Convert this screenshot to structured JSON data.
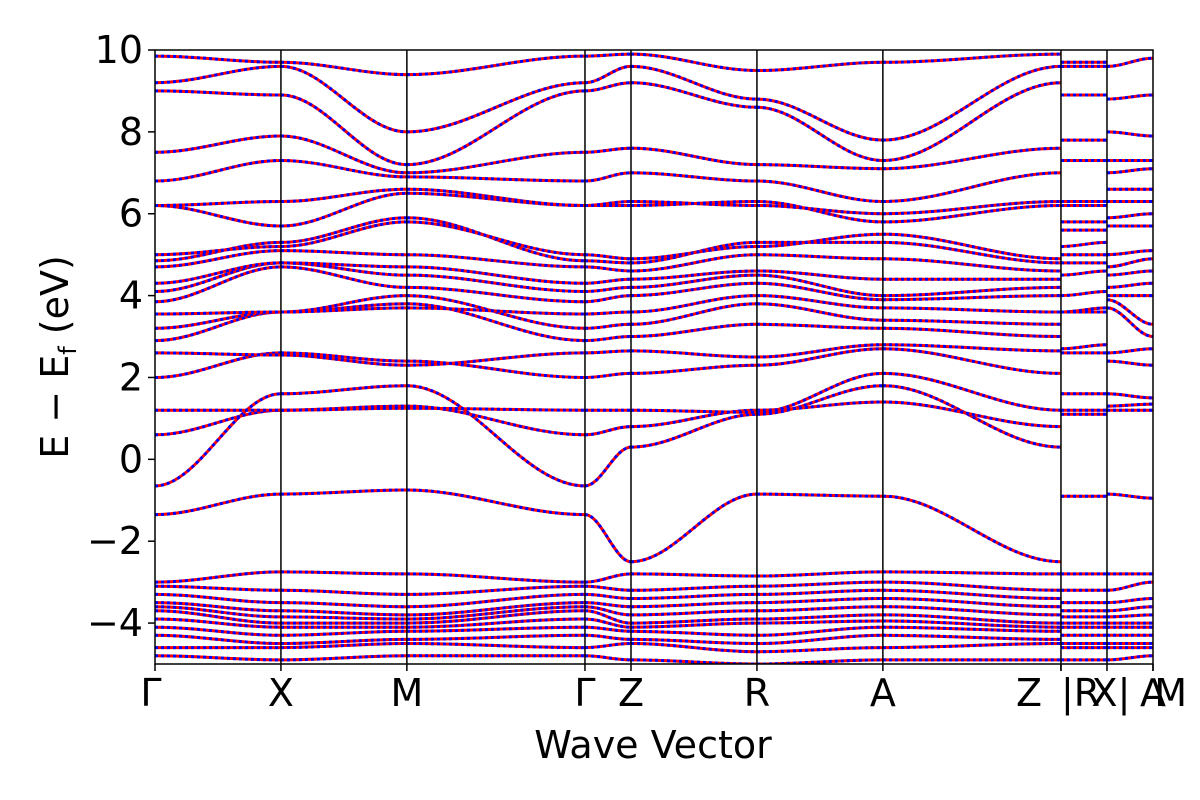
{
  "chart_data": {
    "type": "line",
    "title": "",
    "xlabel": "Wave Vector",
    "ylabel_main": "E − E",
    "ylabel_sub": "f",
    "ylabel_unit": " (eV)",
    "ylim": [
      -5,
      10
    ],
    "yticks": [
      -4,
      -2,
      0,
      2,
      4,
      6,
      8,
      10
    ],
    "ytick_labels": [
      "−4",
      "−2",
      "0",
      "2",
      "4",
      "6",
      "8",
      "10"
    ],
    "kpoints": [
      {
        "label": "Γ",
        "x": 0.0
      },
      {
        "label": "X",
        "x": 0.5
      },
      {
        "label": "M",
        "x": 1.0
      },
      {
        "label": "Γ",
        "x": 1.7071
      },
      {
        "label": "Z",
        "x": 1.8898
      },
      {
        "label": "R",
        "x": 2.3898
      },
      {
        "label": "A",
        "x": 2.8898
      },
      {
        "label": "Z",
        "x": 3.5969
      },
      {
        "label": "R",
        "x": 3.5969
      },
      {
        "label": "X",
        "x": 3.7796
      },
      {
        "label": "M",
        "x": 3.9623
      },
      {
        "label": "A",
        "x": 3.9623
      }
    ],
    "kpoint_label_text": [
      "Γ",
      "X",
      "M",
      "Γ",
      "Z",
      "R",
      "A",
      "Z",
      "|R",
      "X|",
      "M",
      "A"
    ],
    "xlim": [
      0.0,
      3.9623
    ],
    "series_styles": [
      {
        "color": "#ff0000",
        "dash": "solid"
      },
      {
        "color": "#0000ff",
        "dash": "dotted"
      }
    ],
    "segments": [
      {
        "x0": 0.0,
        "x1": 0.5,
        "bands": [
          [
            -1.35,
            -0.85
          ],
          [
            -0.65,
            1.6
          ],
          [
            0.6,
            1.2
          ],
          [
            1.2,
            1.2
          ],
          [
            2.0,
            2.6
          ],
          [
            2.6,
            2.55
          ],
          [
            2.9,
            3.6
          ],
          [
            3.2,
            3.6
          ],
          [
            3.55,
            3.6
          ],
          [
            3.85,
            4.7
          ],
          [
            4.1,
            4.8
          ],
          [
            4.3,
            4.8
          ],
          [
            4.7,
            5.1
          ],
          [
            4.85,
            5.3
          ],
          [
            5.0,
            5.2
          ],
          [
            6.2,
            5.7
          ],
          [
            6.2,
            6.3
          ],
          [
            6.8,
            7.3
          ],
          [
            7.5,
            7.9
          ],
          [
            9.0,
            8.9
          ],
          [
            9.2,
            9.6
          ],
          [
            9.85,
            9.7
          ],
          [
            -3.0,
            -2.75
          ],
          [
            -3.1,
            -3.2
          ],
          [
            -3.3,
            -3.5
          ],
          [
            -3.5,
            -3.7
          ],
          [
            -3.6,
            -3.85
          ],
          [
            -3.7,
            -4.0
          ],
          [
            -3.9,
            -4.1
          ],
          [
            -4.1,
            -4.3
          ],
          [
            -4.3,
            -4.5
          ],
          [
            -4.6,
            -4.6
          ],
          [
            -4.8,
            -4.9
          ]
        ]
      },
      {
        "x0": 0.5,
        "x1": 1.0,
        "bands": [
          [
            -0.85,
            -0.75
          ],
          [
            1.6,
            1.8
          ],
          [
            1.2,
            1.3
          ],
          [
            1.2,
            1.25
          ],
          [
            2.6,
            2.4
          ],
          [
            2.55,
            2.3
          ],
          [
            3.6,
            3.8
          ],
          [
            3.6,
            4.0
          ],
          [
            3.6,
            3.7
          ],
          [
            4.7,
            4.2
          ],
          [
            4.8,
            4.5
          ],
          [
            4.8,
            4.7
          ],
          [
            5.1,
            5.0
          ],
          [
            5.3,
            5.9
          ],
          [
            5.2,
            5.8
          ],
          [
            5.7,
            6.5
          ],
          [
            6.3,
            6.6
          ],
          [
            7.3,
            6.9
          ],
          [
            7.9,
            7.0
          ],
          [
            8.9,
            7.2
          ],
          [
            9.6,
            8.0
          ],
          [
            9.7,
            9.4
          ],
          [
            -2.75,
            -2.8
          ],
          [
            -3.2,
            -3.3
          ],
          [
            -3.5,
            -3.6
          ],
          [
            -3.7,
            -3.8
          ],
          [
            -3.85,
            -3.9
          ],
          [
            -4.0,
            -4.0
          ],
          [
            -4.1,
            -4.1
          ],
          [
            -4.3,
            -4.2
          ],
          [
            -4.5,
            -4.4
          ],
          [
            -4.6,
            -4.5
          ],
          [
            -4.9,
            -4.8
          ]
        ]
      },
      {
        "x0": 1.0,
        "x1": 1.7071,
        "bands": [
          [
            -0.75,
            -1.35
          ],
          [
            1.8,
            -0.65
          ],
          [
            1.3,
            0.6
          ],
          [
            1.25,
            1.2
          ],
          [
            2.4,
            2.0
          ],
          [
            2.3,
            2.6
          ],
          [
            3.8,
            2.9
          ],
          [
            4.0,
            3.2
          ],
          [
            3.7,
            3.55
          ],
          [
            4.2,
            3.85
          ],
          [
            4.5,
            4.1
          ],
          [
            4.7,
            4.3
          ],
          [
            5.0,
            4.7
          ],
          [
            5.9,
            4.85
          ],
          [
            5.8,
            5.0
          ],
          [
            6.5,
            6.2
          ],
          [
            6.6,
            6.2
          ],
          [
            6.9,
            6.8
          ],
          [
            7.0,
            7.5
          ],
          [
            7.2,
            9.0
          ],
          [
            8.0,
            9.2
          ],
          [
            9.4,
            9.85
          ],
          [
            -2.8,
            -3.0
          ],
          [
            -3.3,
            -3.1
          ],
          [
            -3.6,
            -3.3
          ],
          [
            -3.8,
            -3.5
          ],
          [
            -3.9,
            -3.6
          ],
          [
            -4.0,
            -3.7
          ],
          [
            -4.1,
            -3.9
          ],
          [
            -4.2,
            -4.1
          ],
          [
            -4.4,
            -4.3
          ],
          [
            -4.5,
            -4.6
          ],
          [
            -4.8,
            -4.8
          ]
        ]
      },
      {
        "x0": 1.7071,
        "x1": 1.8898,
        "bands": [
          [
            -1.35,
            -2.5
          ],
          [
            -0.65,
            0.3
          ],
          [
            0.6,
            0.8
          ],
          [
            1.2,
            1.2
          ],
          [
            2.0,
            2.1
          ],
          [
            2.6,
            2.65
          ],
          [
            2.9,
            3.0
          ],
          [
            3.2,
            3.3
          ],
          [
            3.55,
            3.6
          ],
          [
            3.85,
            4.0
          ],
          [
            4.1,
            4.2
          ],
          [
            4.3,
            4.4
          ],
          [
            4.7,
            4.6
          ],
          [
            4.85,
            4.8
          ],
          [
            5.0,
            4.9
          ],
          [
            6.2,
            6.2
          ],
          [
            6.2,
            6.3
          ],
          [
            6.8,
            7.0
          ],
          [
            7.5,
            7.6
          ],
          [
            9.0,
            9.2
          ],
          [
            9.2,
            9.6
          ],
          [
            9.85,
            9.9
          ],
          [
            -3.0,
            -2.8
          ],
          [
            -3.1,
            -3.2
          ],
          [
            -3.3,
            -3.4
          ],
          [
            -3.5,
            -3.6
          ],
          [
            -3.6,
            -3.8
          ],
          [
            -3.7,
            -4.0
          ],
          [
            -3.9,
            -4.1
          ],
          [
            -4.1,
            -4.2
          ],
          [
            -4.3,
            -4.4
          ],
          [
            -4.6,
            -4.5
          ],
          [
            -4.8,
            -4.9
          ]
        ]
      },
      {
        "x0": 1.8898,
        "x1": 2.3898,
        "bands": [
          [
            -2.5,
            -0.85
          ],
          [
            0.3,
            1.1
          ],
          [
            0.8,
            1.2
          ],
          [
            1.2,
            1.15
          ],
          [
            2.1,
            2.3
          ],
          [
            2.65,
            2.5
          ],
          [
            3.0,
            3.3
          ],
          [
            3.3,
            3.8
          ],
          [
            3.6,
            4.0
          ],
          [
            4.0,
            4.3
          ],
          [
            4.2,
            4.5
          ],
          [
            4.4,
            4.6
          ],
          [
            4.6,
            5.0
          ],
          [
            4.8,
            5.3
          ],
          [
            4.9,
            5.2
          ],
          [
            6.2,
            6.3
          ],
          [
            6.3,
            6.2
          ],
          [
            7.0,
            6.8
          ],
          [
            7.6,
            7.2
          ],
          [
            9.2,
            8.6
          ],
          [
            9.6,
            8.8
          ],
          [
            9.9,
            9.5
          ],
          [
            -2.8,
            -2.85
          ],
          [
            -3.2,
            -3.1
          ],
          [
            -3.4,
            -3.3
          ],
          [
            -3.6,
            -3.5
          ],
          [
            -3.8,
            -3.7
          ],
          [
            -4.0,
            -3.9
          ],
          [
            -4.1,
            -4.0
          ],
          [
            -4.2,
            -4.3
          ],
          [
            -4.4,
            -4.5
          ],
          [
            -4.5,
            -4.7
          ],
          [
            -4.9,
            -5.0
          ]
        ]
      },
      {
        "x0": 2.3898,
        "x1": 2.8898,
        "bands": [
          [
            -0.85,
            -0.9
          ],
          [
            1.1,
            1.8
          ],
          [
            1.2,
            1.4
          ],
          [
            1.15,
            2.1
          ],
          [
            2.3,
            2.7
          ],
          [
            2.5,
            2.8
          ],
          [
            3.3,
            3.2
          ],
          [
            3.8,
            3.4
          ],
          [
            4.0,
            3.7
          ],
          [
            4.3,
            3.9
          ],
          [
            4.5,
            4.0
          ],
          [
            4.6,
            4.4
          ],
          [
            5.0,
            4.9
          ],
          [
            5.3,
            5.3
          ],
          [
            5.2,
            5.5
          ],
          [
            6.3,
            5.8
          ],
          [
            6.2,
            6.0
          ],
          [
            6.8,
            6.3
          ],
          [
            7.2,
            7.1
          ],
          [
            8.6,
            7.3
          ],
          [
            8.8,
            7.8
          ],
          [
            9.5,
            9.7
          ],
          [
            -2.85,
            -2.75
          ],
          [
            -3.1,
            -3.0
          ],
          [
            -3.3,
            -3.2
          ],
          [
            -3.5,
            -3.4
          ],
          [
            -3.7,
            -3.6
          ],
          [
            -3.9,
            -3.8
          ],
          [
            -4.0,
            -3.95
          ],
          [
            -4.3,
            -4.1
          ],
          [
            -4.5,
            -4.3
          ],
          [
            -4.7,
            -4.6
          ],
          [
            -5.0,
            -4.9
          ]
        ]
      },
      {
        "x0": 2.8898,
        "x1": 3.5969,
        "bands": [
          [
            -0.9,
            -2.5
          ],
          [
            1.8,
            0.3
          ],
          [
            1.4,
            0.8
          ],
          [
            2.1,
            1.2
          ],
          [
            2.7,
            2.1
          ],
          [
            2.8,
            2.65
          ],
          [
            3.2,
            3.0
          ],
          [
            3.4,
            3.3
          ],
          [
            3.7,
            3.6
          ],
          [
            3.9,
            4.0
          ],
          [
            4.0,
            4.2
          ],
          [
            4.4,
            4.4
          ],
          [
            4.9,
            4.6
          ],
          [
            5.3,
            4.8
          ],
          [
            5.5,
            4.9
          ],
          [
            5.8,
            6.2
          ],
          [
            6.0,
            6.3
          ],
          [
            6.3,
            7.0
          ],
          [
            7.1,
            7.6
          ],
          [
            7.3,
            9.2
          ],
          [
            7.8,
            9.6
          ],
          [
            9.7,
            9.9
          ],
          [
            -2.75,
            -2.8
          ],
          [
            -3.0,
            -3.2
          ],
          [
            -3.2,
            -3.4
          ],
          [
            -3.4,
            -3.6
          ],
          [
            -3.6,
            -3.8
          ],
          [
            -3.8,
            -4.0
          ],
          [
            -3.95,
            -4.1
          ],
          [
            -4.1,
            -4.2
          ],
          [
            -4.3,
            -4.4
          ],
          [
            -4.6,
            -4.5
          ],
          [
            -4.9,
            -4.9
          ]
        ]
      },
      {
        "x0": 3.5969,
        "x1": 3.7796,
        "bands": [
          [
            -0.9,
            -0.9
          ],
          [
            1.6,
            1.6
          ],
          [
            1.1,
            1.1
          ],
          [
            1.2,
            1.2
          ],
          [
            2.6,
            2.6
          ],
          [
            2.7,
            2.8
          ],
          [
            3.6,
            3.6
          ],
          [
            3.6,
            3.7
          ],
          [
            4.0,
            4.1
          ],
          [
            4.5,
            4.6
          ],
          [
            4.8,
            4.8
          ],
          [
            5.0,
            5.0
          ],
          [
            5.2,
            5.3
          ],
          [
            5.6,
            5.6
          ],
          [
            5.8,
            5.8
          ],
          [
            6.2,
            6.2
          ],
          [
            6.3,
            6.3
          ],
          [
            7.3,
            7.3
          ],
          [
            7.8,
            7.8
          ],
          [
            8.9,
            8.9
          ],
          [
            9.6,
            9.6
          ],
          [
            9.7,
            9.7
          ],
          [
            -2.8,
            -2.8
          ],
          [
            -3.2,
            -3.2
          ],
          [
            -3.5,
            -3.5
          ],
          [
            -3.7,
            -3.7
          ],
          [
            -3.85,
            -3.85
          ],
          [
            -4.0,
            -4.0
          ],
          [
            -4.1,
            -4.1
          ],
          [
            -4.3,
            -4.3
          ],
          [
            -4.5,
            -4.5
          ],
          [
            -4.6,
            -4.6
          ],
          [
            -4.9,
            -4.9
          ]
        ]
      },
      {
        "x0": 3.7796,
        "x1": 3.9623,
        "bands": [
          [
            -0.85,
            -0.95
          ],
          [
            1.6,
            1.5
          ],
          [
            1.2,
            1.2
          ],
          [
            1.3,
            1.35
          ],
          [
            2.4,
            2.3
          ],
          [
            2.6,
            2.7
          ],
          [
            3.7,
            3.0
          ],
          [
            3.9,
            3.3
          ],
          [
            4.0,
            4.0
          ],
          [
            4.2,
            4.3
          ],
          [
            4.5,
            4.6
          ],
          [
            4.7,
            4.9
          ],
          [
            5.0,
            5.1
          ],
          [
            5.7,
            5.7
          ],
          [
            5.9,
            6.0
          ],
          [
            6.3,
            6.3
          ],
          [
            6.6,
            6.6
          ],
          [
            7.0,
            7.1
          ],
          [
            7.3,
            7.3
          ],
          [
            8.0,
            7.9
          ],
          [
            8.8,
            8.9
          ],
          [
            9.6,
            9.8
          ],
          [
            -2.8,
            -2.8
          ],
          [
            -3.2,
            -3.0
          ],
          [
            -3.5,
            -3.4
          ],
          [
            -3.7,
            -3.6
          ],
          [
            -3.85,
            -3.8
          ],
          [
            -4.0,
            -4.0
          ],
          [
            -4.1,
            -4.1
          ],
          [
            -4.3,
            -4.3
          ],
          [
            -4.5,
            -4.5
          ],
          [
            -4.6,
            -4.6
          ],
          [
            -4.9,
            -4.8
          ]
        ]
      }
    ]
  }
}
